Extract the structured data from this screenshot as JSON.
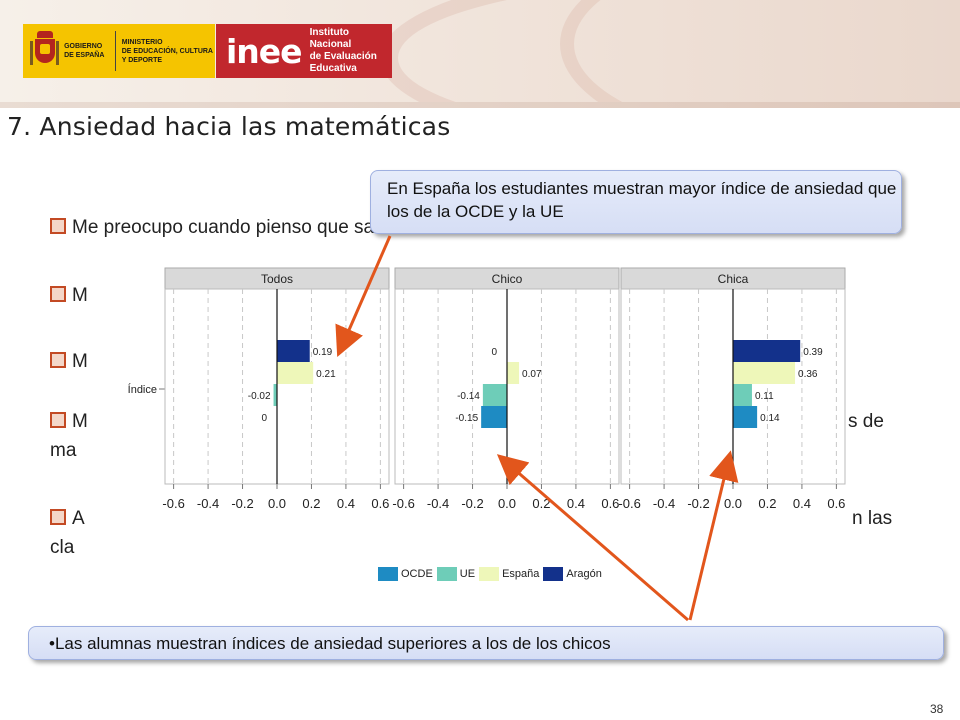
{
  "header": {
    "gov_text": "GOBIERNO\nDE ESPAÑA",
    "ministry_text": "MINISTERIO\nDE EDUCACIÓN, CULTURA\nY DEPORTE",
    "inee_word": "inee",
    "inee_text": "Instituto Nacional\nde Evaluación\nEducativa"
  },
  "title": "7. Ansiedad hacia las matemáticas",
  "bullets": [
    {
      "text": "Me preocupo cuando pienso que sacaré malas notas en matemáticas"
    },
    {
      "text": "M"
    },
    {
      "text": "M"
    },
    {
      "text": "M",
      "tail": "s   de",
      "second_line": "ma"
    },
    {
      "text": "A",
      "tail": "n   las",
      "second_line": "cla"
    }
  ],
  "callouts": {
    "top": "En España los estudiantes muestran mayor índice de ansiedad que los de la OCDE y la UE",
    "bottom": "•Las alumnas muestran índices de ansiedad superiores a los de los chicos"
  },
  "page_number": "38",
  "chart_data": {
    "type": "bar",
    "orientation": "horizontal",
    "category_label": "Índice",
    "panels": [
      "Todos",
      "Chico",
      "Chica"
    ],
    "series": [
      {
        "name": "Aragón",
        "color": "#13318b",
        "values": [
          0.19,
          0.0,
          0.39
        ],
        "labels": [
          "0.19",
          "0",
          "0.39"
        ]
      },
      {
        "name": "España",
        "color": "#eef7b9",
        "values": [
          0.21,
          0.07,
          0.36
        ],
        "labels": [
          "0.21",
          "0.07",
          "0.36"
        ]
      },
      {
        "name": "UE",
        "color": "#6ecdb8",
        "values": [
          -0.02,
          -0.14,
          0.11
        ],
        "labels": [
          "-0.02",
          "-0.14",
          "0.11"
        ]
      },
      {
        "name": "OCDE",
        "color": "#1e8bc3",
        "values": [
          0.0,
          -0.15,
          0.14
        ],
        "labels": [
          "0",
          "-0.15",
          "0.14"
        ]
      }
    ],
    "legend_order": [
      "OCDE",
      "UE",
      "España",
      "Aragón"
    ],
    "xlim": [
      -0.65,
      0.65
    ],
    "xticks": [
      -0.6,
      -0.4,
      -0.2,
      0.0,
      0.2,
      0.4,
      0.6
    ],
    "xtick_labels": [
      "-0.6",
      "-0.4",
      "-0.2",
      "0.0",
      "0.2",
      "0.4",
      "0.6"
    ],
    "grid": "vertical dashed",
    "legend_position": "bottom"
  }
}
